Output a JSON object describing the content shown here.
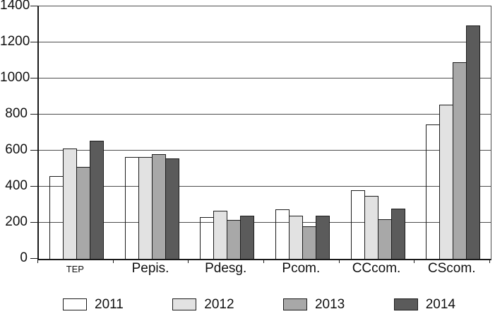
{
  "chart_data": {
    "type": "bar",
    "title": "",
    "xlabel": "",
    "ylabel": "",
    "categories": [
      "TEP",
      "Pepis.",
      "Pdesg.",
      "Pcom.",
      "CCcom.",
      "CScom."
    ],
    "series": [
      {
        "name": "2011",
        "fill": "none",
        "values": [
          460,
          565,
          230,
          275,
          380,
          745
        ]
      },
      {
        "name": "2012",
        "fill": "#e2e2e2",
        "values": [
          610,
          565,
          265,
          240,
          350,
          855
        ]
      },
      {
        "name": "2013",
        "fill": "#a8a8a8",
        "values": [
          510,
          580,
          215,
          180,
          220,
          1090
        ]
      },
      {
        "name": "2014",
        "fill": "#5b5b5b",
        "values": [
          655,
          555,
          240,
          240,
          280,
          1295
        ]
      }
    ],
    "ylim": [
      0,
      1400
    ],
    "ytick_step": 200,
    "yticks": [
      "0",
      "200",
      "400",
      "600",
      "800",
      "1000",
      "1200",
      "1400"
    ],
    "grid": true,
    "gridlines_show_through_unfilled_bars": true,
    "legend_position": "bottom",
    "legend_labels": [
      "2011",
      "2012",
      "2013",
      "2014"
    ],
    "colors": {
      "background": "#ffffff",
      "grid": "#4d4d4d",
      "axis": "#1a1a1a",
      "bar_border": "#1c1c1c",
      "text": "#111111"
    }
  }
}
